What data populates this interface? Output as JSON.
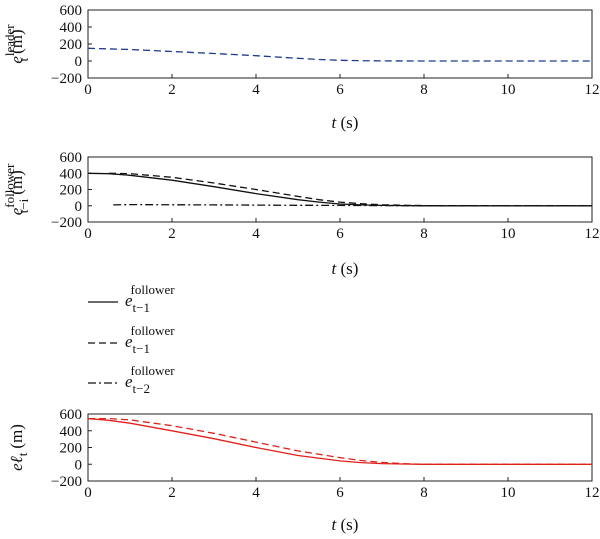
{
  "chart_data": [
    {
      "type": "line",
      "xlabel": "t (s)",
      "ylabel": {
        "base": "e",
        "sup": "leader",
        "sub": "t",
        "unit": "(m)"
      },
      "xlim": [
        0,
        12
      ],
      "ylim": [
        -200,
        600
      ],
      "xticks": [
        "0",
        "2",
        "4",
        "6",
        "8",
        "10",
        "12"
      ],
      "yticks": [
        "600",
        "400",
        "200",
        "0",
        "−200"
      ],
      "series": [
        {
          "x": [
            0,
            1,
            2,
            3,
            4,
            5,
            5.5,
            6,
            6.5,
            7,
            8,
            10,
            12
          ],
          "values": [
            150,
            135,
            112,
            88,
            62,
            32,
            18,
            8,
            3,
            1,
            0,
            0,
            0
          ],
          "color": "#1f3b8f",
          "dash": "dashed"
        }
      ]
    },
    {
      "type": "line",
      "xlabel": "t (s)",
      "ylabel": {
        "base": "e",
        "sup": "follower",
        "sub": "t−i",
        "unit": "(m)"
      },
      "xlim": [
        0,
        12
      ],
      "ylim": [
        -200,
        600
      ],
      "xticks": [
        "0",
        "2",
        "4",
        "6",
        "8",
        "10",
        "12"
      ],
      "yticks": [
        "600",
        "400",
        "200",
        "0",
        "−200"
      ],
      "series": [
        {
          "x": [
            0,
            0.5,
            1,
            2,
            3,
            4,
            5,
            5.5,
            6,
            6.5,
            7,
            8,
            10,
            12
          ],
          "values": [
            400,
            395,
            375,
            315,
            235,
            150,
            75,
            45,
            22,
            10,
            4,
            0,
            0,
            0
          ],
          "color": "#111111",
          "dash": "solid"
        },
        {
          "x": [
            0.5,
            1,
            2,
            3,
            4,
            5,
            5.5,
            6,
            6.5,
            7,
            8,
            10,
            12
          ],
          "values": [
            400,
            395,
            350,
            280,
            200,
            115,
            75,
            45,
            25,
            12,
            2,
            0,
            0
          ],
          "color": "#111111",
          "dash": "dashed"
        },
        {
          "x": [
            0.6,
            1,
            2,
            3,
            4,
            5,
            6,
            7,
            8,
            10,
            12
          ],
          "values": [
            10,
            14,
            12,
            10,
            8,
            6,
            4,
            2,
            0,
            0,
            0
          ],
          "color": "#111111",
          "dash": "dashdot"
        }
      ]
    },
    {
      "type": "line",
      "xlabel": "t (s)",
      "ylabel": {
        "base": "e",
        "sup": "",
        "sub": "t",
        "unit": "(m)",
        "mark": "t"
      },
      "xlim": [
        0,
        12
      ],
      "ylim": [
        -200,
        600
      ],
      "xticks": [
        "0",
        "2",
        "4",
        "6",
        "8",
        "10",
        "12"
      ],
      "yticks": [
        "600",
        "400",
        "200",
        "0",
        "−200"
      ],
      "series": [
        {
          "x": [
            0,
            0.5,
            1,
            2,
            3,
            4,
            5,
            6,
            6.5,
            7,
            7.5,
            8,
            10,
            12
          ],
          "values": [
            545,
            525,
            490,
            400,
            305,
            200,
            105,
            40,
            20,
            8,
            3,
            0,
            0,
            0
          ],
          "color": "#e0201b",
          "dash": "solid"
        },
        {
          "x": [
            0,
            0.5,
            1,
            2,
            3,
            4,
            5,
            6,
            6.5,
            7,
            7.5,
            8,
            10,
            12
          ],
          "values": [
            545,
            545,
            530,
            460,
            370,
            265,
            160,
            80,
            45,
            22,
            8,
            0,
            0,
            0
          ],
          "color": "#e0201b",
          "dash": "dashed"
        }
      ]
    }
  ],
  "legend": [
    {
      "base": "e",
      "sup": "follower",
      "sub": "t−1",
      "dash": "solid"
    },
    {
      "base": "e",
      "sup": "follower",
      "sub": "t−1",
      "dash": "dashed"
    },
    {
      "base": "e",
      "sup": "follower",
      "sub": "t−2",
      "dash": "dashdot"
    }
  ]
}
